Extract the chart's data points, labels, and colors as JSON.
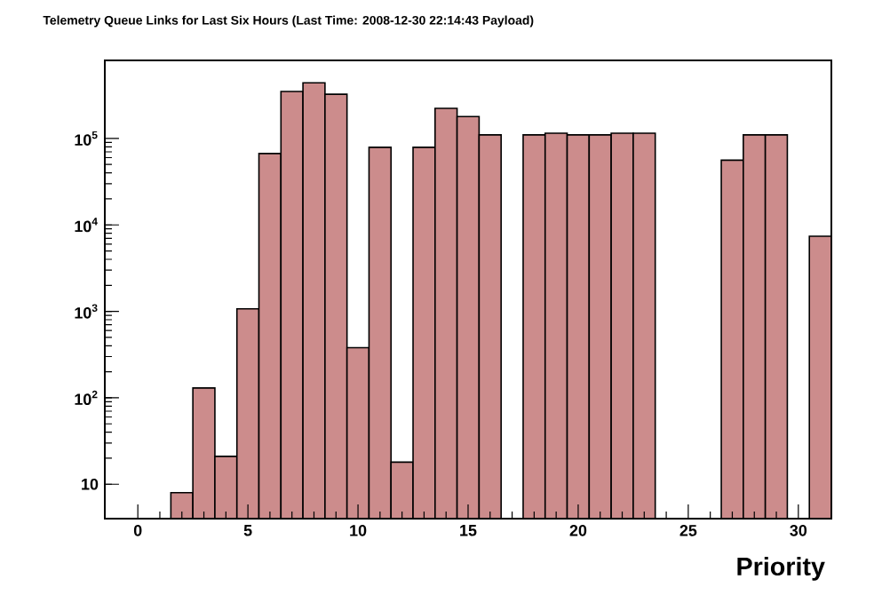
{
  "chart_data": {
    "type": "histogram",
    "title": "Telemetry Queue Links for Last Six Hours (Last Time: 2008-12-30 22:14:43 Payload)",
    "xlabel": "Priority",
    "bins": [
      1.5,
      2.5,
      3.5,
      4.5,
      5.5,
      6.5,
      7.5,
      8.5,
      9.5,
      10.5,
      11.5,
      12.5,
      13.5,
      14.5,
      15.5,
      16.5,
      17.5,
      18.5,
      19.5,
      20.5,
      21.5,
      22.5,
      23.5,
      24.5,
      25.5,
      26.5,
      27.5,
      28.5,
      29.5,
      30.5,
      31.5
    ],
    "values": [
      8,
      130,
      21,
      1070,
      67000,
      350000,
      440000,
      325000,
      380,
      79000,
      18,
      79000,
      223000,
      179000,
      110000,
      null,
      110000,
      115000,
      110000,
      110000,
      115000,
      115000,
      null,
      null,
      null,
      56000,
      110000,
      110000,
      null,
      7400
    ],
    "color": "#cc8c8c",
    "log": "y",
    "xlim": [
      -1.5,
      31.5
    ],
    "xticks": [
      0,
      5,
      10,
      15,
      20,
      25,
      30
    ],
    "ylim": [
      4,
      800000
    ],
    "yticks": [
      {
        "value": 10,
        "label": "10"
      },
      {
        "value": 100,
        "label": "10$^{2}$"
      },
      {
        "value": 1000,
        "label": "10$^{3}$"
      },
      {
        "value": 10000,
        "label": "10$^{4}$"
      },
      {
        "value": 100000,
        "label": "10$^{5}$"
      }
    ]
  }
}
